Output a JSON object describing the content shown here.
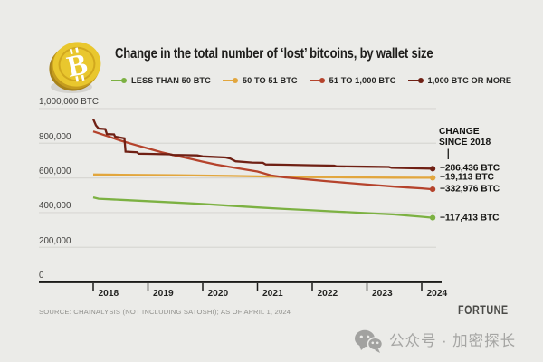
{
  "page": {
    "background": "#ebebe8"
  },
  "header": {
    "title": "Change in the total number of ‘lost’ bitcoins, by wallet size",
    "coin_icon": "bitcoin-coin"
  },
  "legend": [
    {
      "label": "LESS THAN 50 BTC",
      "color": "#7cb142"
    },
    {
      "label": "50 TO 51 BTC",
      "color": "#e2a63d"
    },
    {
      "label": "51 TO 1,000 BTC",
      "color": "#b5432c"
    },
    {
      "label": "1,000 BTC OR MORE",
      "color": "#6f2014"
    }
  ],
  "chart_data": {
    "type": "line",
    "title": "Change in the total number of ‘lost’ bitcoins, by wallet size",
    "grid": true,
    "x_axis": {
      "range": [
        2018,
        2024.25
      ],
      "ticks": [
        {
          "label": "2018",
          "year": 2018
        },
        {
          "label": "2019",
          "year": 2019
        },
        {
          "label": "2020",
          "year": 2020
        },
        {
          "label": "2021",
          "year": 2021
        },
        {
          "label": "2022",
          "year": 2022
        },
        {
          "label": "2023",
          "year": 2023
        },
        {
          "label": "2024",
          "year": 2024
        }
      ]
    },
    "y_axis": {
      "unit": "BTC",
      "range": [
        0,
        1000000
      ],
      "ticks": [
        {
          "label": "1,000,000 BTC",
          "value": 1000000
        },
        {
          "label": "800,000",
          "value": 800000
        },
        {
          "label": "600,000",
          "value": 600000
        },
        {
          "label": "400,000",
          "value": 400000
        },
        {
          "label": "200,000",
          "value": 200000
        },
        {
          "label": "0",
          "value": 0
        }
      ]
    },
    "annotation": {
      "line1": "CHANGE",
      "line2": "SINCE 2018"
    },
    "series": [
      {
        "name": "LESS THAN 50 BTC",
        "color": "#7cb142",
        "change_label": "−117,413 BTC",
        "change_since_2018": -117413,
        "points": [
          [
            2018.0,
            488000
          ],
          [
            2018.1,
            480000
          ],
          [
            2018.5,
            474000
          ],
          [
            2019.0,
            466000
          ],
          [
            2019.5,
            458000
          ],
          [
            2020.0,
            450000
          ],
          [
            2020.5,
            440000
          ],
          [
            2021.0,
            430000
          ],
          [
            2021.5,
            421000
          ],
          [
            2022.0,
            413000
          ],
          [
            2022.5,
            405000
          ],
          [
            2023.0,
            397000
          ],
          [
            2023.5,
            389000
          ],
          [
            2024.0,
            376000
          ],
          [
            2024.2,
            370587
          ]
        ]
      },
      {
        "name": "50 TO 51 BTC",
        "color": "#e2a63d",
        "change_label": "−19,113 BTC",
        "change_since_2018": -19113,
        "points": [
          [
            2018.0,
            620000
          ],
          [
            2018.5,
            618500
          ],
          [
            2019.0,
            617000
          ],
          [
            2019.5,
            615500
          ],
          [
            2020.0,
            613500
          ],
          [
            2020.5,
            611500
          ],
          [
            2021.0,
            609000
          ],
          [
            2021.5,
            606500
          ],
          [
            2022.0,
            605000
          ],
          [
            2022.5,
            603500
          ],
          [
            2023.0,
            602500
          ],
          [
            2023.5,
            601800
          ],
          [
            2024.0,
            601100
          ],
          [
            2024.2,
            600887
          ]
        ]
      },
      {
        "name": "51 TO 1,000 BTC",
        "color": "#b5432c",
        "change_label": "−332,976 BTC",
        "change_since_2018": -332976,
        "points": [
          [
            2018.0,
            868000
          ],
          [
            2018.25,
            842000
          ],
          [
            2018.5,
            815000
          ],
          [
            2018.75,
            792000
          ],
          [
            2019.0,
            770000
          ],
          [
            2019.25,
            748000
          ],
          [
            2019.5,
            729000
          ],
          [
            2019.75,
            712000
          ],
          [
            2020.0,
            694000
          ],
          [
            2020.25,
            677000
          ],
          [
            2020.5,
            663000
          ],
          [
            2020.75,
            650000
          ],
          [
            2021.0,
            637000
          ],
          [
            2021.25,
            614000
          ],
          [
            2021.5,
            603000
          ],
          [
            2021.75,
            596000
          ],
          [
            2022.0,
            589000
          ],
          [
            2022.25,
            582000
          ],
          [
            2022.5,
            575000
          ],
          [
            2022.75,
            569000
          ],
          [
            2023.0,
            562000
          ],
          [
            2023.25,
            556000
          ],
          [
            2023.5,
            550000
          ],
          [
            2023.75,
            545000
          ],
          [
            2024.0,
            540000
          ],
          [
            2024.2,
            535024
          ]
        ]
      },
      {
        "name": "1,000 BTC OR MORE",
        "color": "#6f2014",
        "change_label": "−286,436 BTC",
        "change_since_2018": -286436,
        "points": [
          [
            2018.0,
            940000
          ],
          [
            2018.05,
            903000
          ],
          [
            2018.1,
            885000
          ],
          [
            2018.22,
            882000
          ],
          [
            2018.25,
            853000
          ],
          [
            2018.38,
            851000
          ],
          [
            2018.4,
            838000
          ],
          [
            2018.57,
            828000
          ],
          [
            2018.59,
            752000
          ],
          [
            2018.8,
            748000
          ],
          [
            2018.83,
            740000
          ],
          [
            2019.0,
            739000
          ],
          [
            2019.4,
            736000
          ],
          [
            2019.45,
            733000
          ],
          [
            2019.9,
            730000
          ],
          [
            2020.0,
            724000
          ],
          [
            2020.42,
            718000
          ],
          [
            2020.5,
            712000
          ],
          [
            2020.6,
            696000
          ],
          [
            2020.9,
            689000
          ],
          [
            2021.1,
            687000
          ],
          [
            2021.15,
            678000
          ],
          [
            2021.5,
            676000
          ],
          [
            2022.0,
            673000
          ],
          [
            2022.4,
            671000
          ],
          [
            2022.45,
            667000
          ],
          [
            2023.0,
            665000
          ],
          [
            2023.4,
            663000
          ],
          [
            2023.45,
            659000
          ],
          [
            2024.0,
            655000
          ],
          [
            2024.2,
            653564
          ]
        ]
      }
    ]
  },
  "footer": {
    "source": "SOURCE: CHAINALYSIS (NOT INCLUDING SATOSHI); AS OF APRIL 1, 2024",
    "brand": "FORTUNE"
  },
  "watermark": {
    "icon": "wechat-icon",
    "text": "公众号 · 加密探长"
  }
}
